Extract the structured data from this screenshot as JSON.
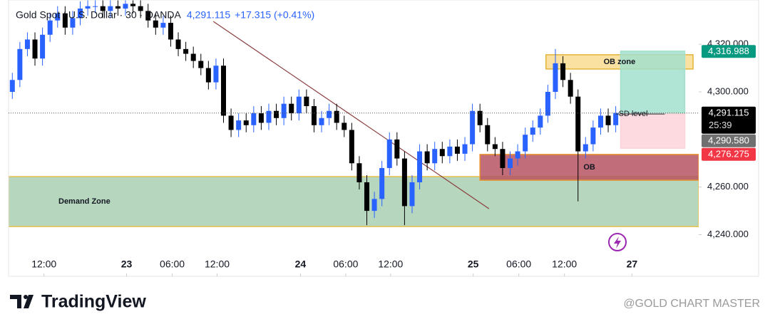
{
  "chart_data": {
    "type": "candlestick",
    "title": "Gold Spot / U.S. Dollar · 30 · OANDA",
    "last_price": "4,291.115",
    "change": "+17.315 (+0.41%)",
    "up_color": "#2962ff",
    "down_color": "#000000",
    "x": [
      1,
      3,
      5,
      7,
      9,
      11,
      13,
      15,
      17,
      19,
      21,
      23,
      25,
      27,
      29,
      31,
      33,
      35,
      37,
      39,
      41,
      43,
      45,
      47,
      49,
      51,
      53,
      55,
      57,
      59,
      61,
      63,
      65,
      67,
      69,
      71,
      73,
      75,
      77,
      79,
      81,
      83,
      85,
      87,
      89,
      91,
      93,
      95,
      97,
      99,
      101,
      103,
      105,
      107,
      109,
      111,
      113,
      115,
      117,
      119,
      121,
      123,
      125,
      127,
      129,
      131,
      133,
      135,
      137,
      139,
      141,
      143,
      145,
      147,
      149,
      151,
      153,
      155,
      157,
      159,
      161
    ],
    "open": [
      4300,
      4305,
      4318,
      4322,
      4314,
      4324,
      4330,
      4333,
      4327,
      4331,
      4335,
      4336,
      4336,
      4334,
      4336,
      4335,
      4337,
      4336,
      4334,
      4330,
      4327,
      4329,
      4322,
      4318,
      4316,
      4313,
      4310,
      4304,
      4311,
      4290,
      4284,
      4288,
      4286,
      4291,
      4287,
      4292,
      4289,
      4295,
      4291,
      4298,
      4294,
      4286,
      4289,
      4292,
      4287,
      4284,
      4270,
      4262,
      4250,
      4255,
      4268,
      4280,
      4272,
      4252,
      4262,
      4275,
      4270,
      4276,
      4273,
      4277,
      4274,
      4278,
      4292,
      4286,
      4278,
      4276,
      4268,
      4272,
      4275,
      4282,
      4285,
      4290,
      4300,
      4312,
      4305,
      4298,
      4275,
      4278,
      4285,
      4290,
      4286
    ],
    "high": [
      4308,
      4321,
      4325,
      4325,
      4327,
      4333,
      4336,
      4336,
      4334,
      4338,
      4339,
      4339,
      4339,
      4339,
      4339,
      4340,
      4340,
      4339,
      4337,
      4333,
      4332,
      4332,
      4325,
      4321,
      4319,
      4316,
      4313,
      4314,
      4314,
      4293,
      4291,
      4291,
      4294,
      4294,
      4295,
      4295,
      4298,
      4298,
      4301,
      4301,
      4297,
      4292,
      4295,
      4295,
      4290,
      4287,
      4273,
      4265,
      4258,
      4271,
      4283,
      4283,
      4275,
      4265,
      4278,
      4278,
      4279,
      4279,
      4280,
      4280,
      4281,
      4295,
      4295,
      4289,
      4281,
      4279,
      4275,
      4278,
      4285,
      4288,
      4293,
      4303,
      4318,
      4315,
      4308,
      4301,
      4281,
      4288,
      4293,
      4293,
      4294
    ],
    "low": [
      4297,
      4302,
      4315,
      4311,
      4311,
      4321,
      4327,
      4324,
      4324,
      4328,
      4332,
      4333,
      4331,
      4331,
      4332,
      4332,
      4333,
      4331,
      4327,
      4324,
      4324,
      4319,
      4315,
      4313,
      4310,
      4307,
      4301,
      4301,
      4287,
      4281,
      4281,
      4283,
      4283,
      4284,
      4284,
      4286,
      4286,
      4288,
      4288,
      4291,
      4283,
      4283,
      4286,
      4284,
      4281,
      4267,
      4259,
      4244,
      4247,
      4252,
      4265,
      4269,
      4244,
      4249,
      4259,
      4267,
      4267,
      4270,
      4270,
      4271,
      4271,
      4275,
      4283,
      4275,
      4273,
      4265,
      4265,
      4269,
      4272,
      4279,
      4282,
      4287,
      4297,
      4302,
      4295,
      4254,
      4272,
      4275,
      4282,
      4283,
      4283
    ],
    "close": [
      4305,
      4318,
      4322,
      4314,
      4324,
      4330,
      4333,
      4327,
      4331,
      4335,
      4336,
      4336,
      4334,
      4336,
      4335,
      4337,
      4336,
      4334,
      4330,
      4327,
      4329,
      4322,
      4318,
      4316,
      4313,
      4310,
      4304,
      4311,
      4290,
      4284,
      4288,
      4286,
      4291,
      4287,
      4292,
      4289,
      4295,
      4291,
      4298,
      4294,
      4286,
      4289,
      4292,
      4287,
      4284,
      4270,
      4262,
      4250,
      4255,
      4268,
      4280,
      4272,
      4252,
      4262,
      4275,
      4270,
      4276,
      4273,
      4277,
      4274,
      4278,
      4292,
      4286,
      4278,
      4276,
      4268,
      4272,
      4275,
      4282,
      4285,
      4290,
      4300,
      4312,
      4305,
      4298,
      4275,
      4278,
      4285,
      4290,
      4286,
      4291.115
    ],
    "xlim": [
      0,
      183
    ],
    "xticks": [
      {
        "value": 9.4,
        "label": "12:00"
      },
      {
        "value": 31.3,
        "label": "23"
      },
      {
        "value": 43.4,
        "label": "06:00"
      },
      {
        "value": 55.3,
        "label": "12:00"
      },
      {
        "value": 77.4,
        "label": "24"
      },
      {
        "value": 89.4,
        "label": "06:00"
      },
      {
        "value": 101.3,
        "label": "12:00"
      },
      {
        "value": 123.2,
        "label": "25"
      },
      {
        "value": 135.3,
        "label": "06:00"
      },
      {
        "value": 147.4,
        "label": "12:00"
      },
      {
        "value": 165.3,
        "label": "27"
      }
    ],
    "ylim": [
      4222.5,
      4338.6
    ],
    "yticks": [
      {
        "value": 4240,
        "label": "4,240.000"
      },
      {
        "value": 4260,
        "label": "4,260.000"
      },
      {
        "value": 4300,
        "label": "4,300.000"
      },
      {
        "value": 4320,
        "label": "4,320.000"
      }
    ],
    "zones": [
      {
        "label": "Demand Zone",
        "x": [
          0,
          183
        ],
        "y": [
          4243.4,
          4264.4
        ],
        "color": "#a9cfb3",
        "border": "#e8c04a"
      },
      {
        "label": "OB",
        "x": [
          125,
          183
        ],
        "y": [
          4262.9,
          4273.7
        ],
        "color": "#b65463",
        "border": "#e8902a"
      },
      {
        "label": "OB zone",
        "x": [
          142.5,
          181.5
        ],
        "y": [
          4309.6,
          4315.6
        ],
        "color": "#f9dc92",
        "border": "#e2b43a"
      },
      {
        "x": [
          162.3,
          179.3
        ],
        "y": [
          4290.7,
          4317.1
        ],
        "color": "#a2dfcd",
        "border": "#a2dfcd"
      },
      {
        "x": [
          162.3,
          179.3
        ],
        "y": [
          4276.3,
          4290.7
        ],
        "color": "#fdd3d9",
        "border": "#fdd3d9"
      }
    ],
    "sd_level": {
      "label": "SD level",
      "x": [
        161,
        174
      ],
      "y": 4290.7
    },
    "trendline": {
      "x": [
        54.3,
        127.4
      ],
      "y": [
        4329.6,
        4250.9
      ],
      "color": "#8b3f3f"
    },
    "price_labels": [
      {
        "value": 4316.988,
        "label": "4,316.988",
        "color": "#089981"
      },
      {
        "value": 4291.115,
        "label": "4,291.115",
        "sub": "25:39",
        "color": "#000000"
      },
      {
        "value": 4290.58,
        "label": "4,290.580",
        "color": "#707070"
      },
      {
        "value": 4276.275,
        "label": "4,276.275",
        "color": "#f23645"
      }
    ]
  },
  "footer": {
    "brand": "TradingView",
    "watermark": "@GOLD CHART MASTER"
  }
}
